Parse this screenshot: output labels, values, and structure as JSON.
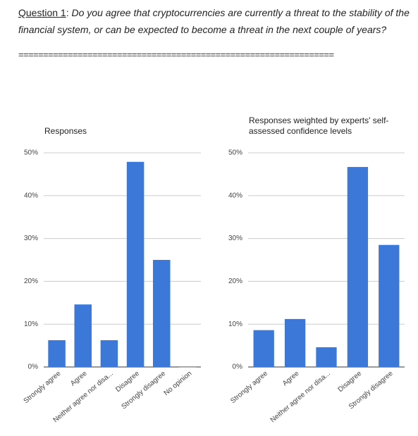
{
  "header": {
    "label": "Question 1",
    "colon": ":",
    "question": "Do you agree that cryptocurrencies are currently a threat to the stability of the financial system, or can be expected to become a threat in the next couple of years?",
    "separator": "================================================================"
  },
  "chart_data": [
    {
      "type": "bar",
      "title": "Responses",
      "categories": [
        "Strongly agree",
        "Agree",
        "Neither agree nor disa...",
        "Disagree",
        "Strongly disagree",
        "No opinion"
      ],
      "values": [
        6.25,
        14.6,
        6.25,
        47.9,
        25,
        0
      ],
      "color": "#3c78d8",
      "ylim": [
        0,
        50
      ],
      "yticks": [
        {
          "value": 0,
          "label": "0%"
        },
        {
          "value": 10,
          "label": "10%"
        },
        {
          "value": 20,
          "label": "20%"
        },
        {
          "value": 30,
          "label": "30%"
        },
        {
          "value": 40,
          "label": "40%"
        },
        {
          "value": 50,
          "label": "50%"
        }
      ],
      "grid": true
    },
    {
      "type": "bar",
      "title": "Responses weighted by experts' self-assessed confidence levels",
      "categories": [
        "Strongly agree",
        "Agree",
        "Neither agree nor disa...",
        "Disagree",
        "Strongly disagree"
      ],
      "values": [
        8.6,
        11.2,
        4.6,
        46.7,
        28.5
      ],
      "color": "#3c78d8",
      "ylim": [
        0,
        50
      ],
      "yticks": [
        {
          "value": 0,
          "label": "0%"
        },
        {
          "value": 10,
          "label": "10%"
        },
        {
          "value": 20,
          "label": "20%"
        },
        {
          "value": 30,
          "label": "30%"
        },
        {
          "value": 40,
          "label": "40%"
        },
        {
          "value": 50,
          "label": "50%"
        }
      ],
      "grid": true
    }
  ]
}
